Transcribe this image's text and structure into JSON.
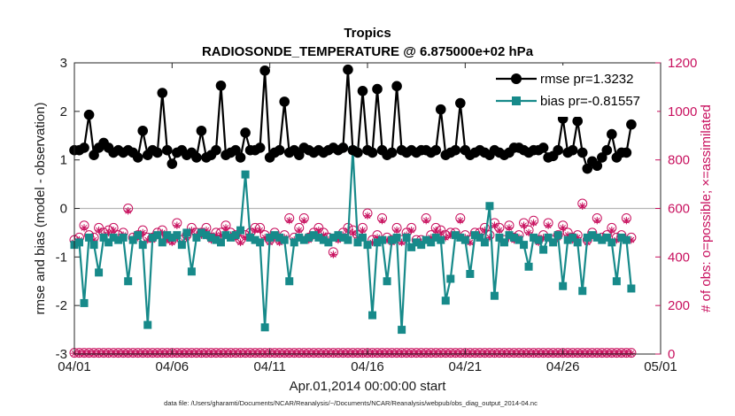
{
  "chart_data": {
    "type": "line",
    "title": "Tropics",
    "subtitle": "RADIOSONDE_TEMPERATURE @ 6.875000e+02 hPa",
    "xlabel": "Apr.01,2014 00:00:00 start",
    "ylabel": "rmse and bias (model - observation)",
    "ylabel_right": "# of obs: o=possible; ×=assimilated",
    "xlim": [
      0,
      30
    ],
    "ylim": [
      -3,
      3
    ],
    "ylim_right": [
      0,
      1200
    ],
    "x_tick_values": [
      0,
      5,
      10,
      15,
      20,
      25,
      30
    ],
    "x_tick_labels": [
      "04/01",
      "04/06",
      "04/11",
      "04/16",
      "04/21",
      "04/26",
      "05/01"
    ],
    "y_tick_labels": [
      "-3",
      "-2",
      "-1",
      "0",
      "1",
      "2",
      "3"
    ],
    "y_right_tick_labels": [
      "0",
      "200",
      "400",
      "600",
      "800",
      "1000",
      "1200"
    ],
    "x_step_days": 0.25,
    "zero_line": true,
    "legend_position": "top-right",
    "footnote": "data file: /Users/gharamti/Documents/NCAR/Reanalysis/~/Documents/NCAR/Reanalysis/webpub/obs_diag_output_2014-04.nc",
    "colors": {
      "rmse": "#000000",
      "bias": "#178a8a",
      "counts": "#c8105e",
      "zero_line": "#b5b5b5"
    },
    "series": [
      {
        "name": "rmse",
        "legend": "rmse pr=1.3232",
        "axis": "left",
        "marker": "circle",
        "values": [
          1.2,
          1.2,
          1.25,
          1.93,
          1.1,
          1.25,
          1.35,
          1.25,
          1.15,
          1.2,
          1.15,
          1.2,
          1.15,
          1.05,
          1.6,
          1.1,
          1.2,
          1.15,
          2.38,
          1.2,
          0.92,
          1.15,
          1.2,
          1.1,
          1.15,
          1.05,
          1.6,
          1.05,
          1.1,
          1.2,
          2.53,
          1.1,
          1.15,
          1.2,
          1.05,
          1.56,
          1.2,
          1.2,
          1.25,
          2.84,
          1.05,
          1.15,
          1.2,
          2.2,
          1.15,
          1.2,
          1.1,
          1.25,
          1.2,
          1.15,
          1.2,
          1.15,
          1.2,
          1.25,
          1.2,
          1.25,
          2.86,
          1.2,
          1.15,
          2.42,
          1.2,
          1.15,
          2.46,
          1.2,
          1.1,
          1.15,
          2.52,
          1.2,
          1.15,
          1.2,
          1.15,
          1.2,
          1.2,
          1.15,
          1.2,
          2.04,
          1.1,
          1.15,
          1.2,
          2.17,
          1.2,
          1.1,
          1.15,
          1.2,
          1.15,
          1.1,
          1.2,
          1.15,
          1.1,
          1.15,
          1.25,
          1.25,
          1.2,
          1.15,
          1.2,
          1.2,
          1.25,
          1.05,
          1.08,
          1.2,
          1.85,
          1.15,
          1.2,
          1.8,
          1.15,
          0.82,
          0.97,
          0.88,
          1.05,
          1.2,
          1.53,
          1.05,
          1.15,
          1.15,
          1.73
        ]
      },
      {
        "name": "bias",
        "legend": "bias pr=-0.81557",
        "axis": "left",
        "marker": "square",
        "values": [
          -0.75,
          -0.7,
          -1.95,
          -0.6,
          -0.75,
          -1.32,
          -0.6,
          -0.7,
          -0.6,
          -0.65,
          -0.6,
          -1.5,
          -0.65,
          -0.55,
          -0.75,
          -2.4,
          -0.6,
          -0.55,
          -0.7,
          -0.55,
          -0.6,
          -0.55,
          -0.75,
          -0.5,
          -1.3,
          -0.6,
          -0.5,
          -0.55,
          -0.6,
          -0.65,
          -0.7,
          -0.55,
          -0.6,
          -0.55,
          -0.45,
          0.7,
          -0.6,
          -0.65,
          -0.7,
          -2.45,
          -0.6,
          -0.55,
          -0.6,
          -0.65,
          -1.5,
          -0.7,
          -0.6,
          -0.65,
          -0.6,
          -0.55,
          -0.6,
          -0.65,
          -0.7,
          -0.6,
          -0.55,
          -0.6,
          -0.65,
          1.2,
          -0.7,
          -0.6,
          -0.75,
          -2.2,
          -0.7,
          -0.65,
          -1.5,
          -0.65,
          -0.6,
          -2.5,
          -0.6,
          -0.8,
          -0.7,
          -0.75,
          -0.65,
          -0.7,
          -0.6,
          -0.65,
          -1.9,
          -1.45,
          -0.55,
          -0.6,
          -0.65,
          -1.35,
          -0.55,
          -0.6,
          -0.7,
          0.05,
          -1.8,
          -0.6,
          -0.7,
          -0.55,
          -0.6,
          -0.65,
          -0.75,
          -1.2,
          -0.6,
          -0.65,
          -0.85,
          -0.6,
          -0.7,
          -0.55,
          -1.6,
          -0.65,
          -0.6,
          -0.7,
          -1.7,
          -0.6,
          -0.55,
          -0.6,
          -0.65,
          -0.6,
          -0.7,
          -1.5,
          -0.6,
          -0.65,
          -1.65
        ]
      },
      {
        "name": "possible obs",
        "axis": "right",
        "marker": "circle-open",
        "values": [
          470,
          480,
          530,
          490,
          480,
          520,
          500,
          510,
          520,
          490,
          500,
          600,
          480,
          490,
          510,
          480,
          480,
          500,
          510,
          480,
          470,
          540,
          470,
          490,
          520,
          500,
          500,
          520,
          480,
          500,
          500,
          530,
          500,
          490,
          470,
          490,
          500,
          520,
          520,
          490,
          470,
          500,
          470,
          490,
          560,
          480,
          520,
          560,
          480,
          500,
          520,
          500,
          480,
          420,
          480,
          500,
          520,
          510,
          490,
          520,
          580,
          470,
          490,
          560,
          480,
          470,
          520,
          470,
          500,
          520,
          470,
          470,
          560,
          490,
          520,
          510,
          490,
          500,
          500,
          560,
          490,
          470,
          500,
          500,
          520,
          490,
          540,
          520,
          470,
          530,
          480,
          490,
          540,
          510,
          550,
          470,
          490,
          540,
          470,
          490,
          530,
          500,
          480,
          490,
          620,
          470,
          500,
          560,
          480,
          490,
          520,
          480,
          490,
          560,
          480
        ]
      },
      {
        "name": "assimilated obs",
        "axis": "right",
        "marker": "star",
        "values": [
          460,
          470,
          520,
          480,
          470,
          510,
          490,
          500,
          510,
          480,
          490,
          590,
          470,
          480,
          500,
          470,
          470,
          490,
          500,
          470,
          460,
          530,
          460,
          480,
          510,
          490,
          490,
          510,
          470,
          490,
          490,
          520,
          490,
          480,
          460,
          480,
          490,
          510,
          510,
          480,
          460,
          490,
          460,
          480,
          550,
          470,
          510,
          550,
          470,
          490,
          510,
          490,
          470,
          410,
          470,
          490,
          510,
          500,
          480,
          510,
          570,
          460,
          480,
          550,
          470,
          460,
          510,
          460,
          490,
          510,
          460,
          460,
          550,
          480,
          510,
          500,
          480,
          490,
          490,
          550,
          480,
          460,
          490,
          490,
          510,
          480,
          530,
          510,
          460,
          520,
          470,
          480,
          530,
          500,
          540,
          460,
          480,
          530,
          460,
          480,
          520,
          490,
          470,
          480,
          610,
          460,
          490,
          550,
          470,
          480,
          510,
          470,
          480,
          550,
          470
        ]
      },
      {
        "name": "possible obs (lower band)",
        "axis": "right",
        "marker": "circle-open",
        "values": [
          5,
          5,
          5,
          5,
          5,
          5,
          5,
          5,
          5,
          5,
          5,
          5,
          5,
          5,
          5,
          5,
          5,
          5,
          5,
          5,
          5,
          5,
          5,
          5,
          5,
          5,
          5,
          5,
          5,
          5,
          5,
          5,
          5,
          5,
          5,
          5,
          5,
          5,
          5,
          5,
          5,
          5,
          5,
          5,
          5,
          5,
          5,
          5,
          5,
          5,
          5,
          5,
          5,
          5,
          5,
          5,
          5,
          5,
          5,
          5,
          5,
          5,
          5,
          5,
          5,
          5,
          5,
          5,
          5,
          5,
          5,
          5,
          5,
          5,
          5,
          5,
          5,
          5,
          5,
          5,
          5,
          5,
          5,
          5,
          5,
          5,
          5,
          5,
          5,
          5,
          5,
          5,
          5,
          5,
          5,
          5,
          5,
          5,
          5,
          5,
          5,
          5,
          5,
          5,
          5,
          5,
          5,
          5,
          5,
          5,
          5,
          5,
          5,
          5,
          5
        ]
      },
      {
        "name": "assimilated obs (lower band)",
        "axis": "right",
        "marker": "star",
        "values": [
          3,
          3,
          3,
          3,
          3,
          3,
          3,
          3,
          3,
          3,
          3,
          3,
          3,
          3,
          3,
          3,
          3,
          3,
          3,
          3,
          3,
          3,
          3,
          3,
          3,
          3,
          3,
          3,
          3,
          3,
          3,
          3,
          3,
          3,
          3,
          3,
          3,
          3,
          3,
          3,
          3,
          3,
          3,
          3,
          3,
          3,
          3,
          3,
          3,
          3,
          3,
          3,
          3,
          3,
          3,
          3,
          3,
          3,
          3,
          3,
          3,
          3,
          3,
          3,
          3,
          3,
          3,
          3,
          3,
          3,
          3,
          3,
          3,
          3,
          3,
          3,
          3,
          3,
          3,
          3,
          3,
          3,
          3,
          3,
          3,
          3,
          3,
          3,
          3,
          3,
          3,
          3,
          3,
          3,
          3,
          3,
          3,
          3,
          3,
          3,
          3,
          3,
          3,
          3,
          3,
          3,
          3,
          3,
          3,
          3,
          3,
          3,
          3,
          3,
          3
        ]
      }
    ]
  }
}
